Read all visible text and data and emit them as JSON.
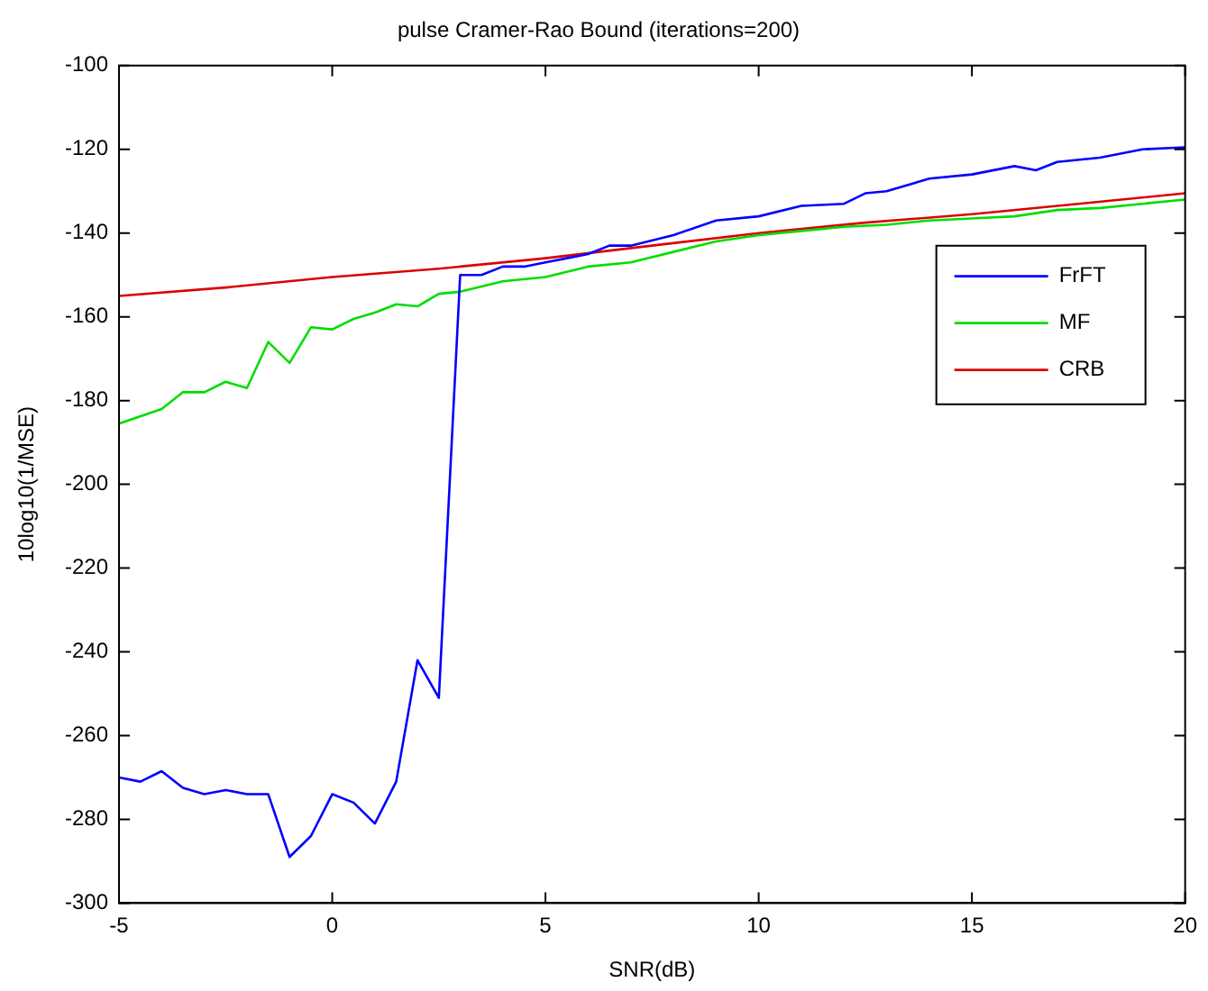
{
  "chart_data": {
    "type": "line",
    "title": "pulse Cramer-Rao Bound (iterations=200)",
    "xlabel": "SNR(dB)",
    "ylabel": "10log10(1/MSE)",
    "xlim": [
      -5,
      20
    ],
    "xticks": [
      -5,
      0,
      5,
      10,
      15,
      20
    ],
    "ylim": [
      -300,
      -100
    ],
    "yticks": [
      -300,
      -280,
      -260,
      -240,
      -220,
      -200,
      -180,
      -160,
      -140,
      -120,
      -100
    ],
    "grid": false,
    "legend": "right",
    "marker": "none",
    "line_style": "solid",
    "series": [
      {
        "name": "FrFT",
        "color": "#0000ff",
        "x": [
          -5,
          -4.5,
          -4,
          -3.5,
          -3,
          -2.5,
          -2,
          -1.5,
          -1,
          -0.5,
          0,
          0.5,
          1,
          1.5,
          2,
          2.5,
          3,
          3.5,
          4,
          4.5,
          5,
          5.5,
          6,
          6.5,
          7,
          8,
          9,
          10,
          11,
          12,
          12.5,
          13,
          14,
          15,
          16,
          16.5,
          17,
          18,
          19,
          20
        ],
        "values": [
          -270,
          -271,
          -268.5,
          -272.5,
          -274,
          -273,
          -274,
          -274,
          -289,
          -284,
          -274,
          -276,
          -281,
          -271,
          -242,
          -251,
          -150,
          -150,
          -148,
          -148,
          -147,
          -146,
          -145,
          -143,
          -143,
          -140.5,
          -137,
          -136,
          -133.5,
          -133,
          -130.5,
          -130,
          -127,
          -126,
          -124,
          -125,
          -123,
          -122,
          -120,
          -119.5
        ]
      },
      {
        "name": "MF",
        "color": "#00dd00",
        "x": [
          -5,
          -4,
          -3.5,
          -3,
          -2.5,
          -2,
          -1.5,
          -1,
          -0.5,
          0,
          0.5,
          1,
          1.5,
          2,
          2.5,
          3,
          4,
          5,
          6,
          7,
          8,
          9,
          10,
          11,
          12,
          13,
          14,
          15,
          16,
          17,
          18,
          19,
          20
        ],
        "values": [
          -185.5,
          -182,
          -178,
          -178,
          -175.5,
          -177,
          -166,
          -171,
          -162.5,
          -163,
          -160.5,
          -159,
          -157,
          -157.5,
          -154.5,
          -154,
          -151.5,
          -150.5,
          -148,
          -147,
          -144.5,
          -142,
          -140.5,
          -139.5,
          -138.5,
          -138,
          -137,
          -136.5,
          -136,
          -134.5,
          -134,
          -133,
          -132
        ]
      },
      {
        "name": "CRB",
        "color": "#dd0000",
        "x": [
          -5,
          -2.5,
          0,
          2.5,
          5,
          7.5,
          10,
          12.5,
          15,
          17.5,
          20
        ],
        "values": [
          -155,
          -153,
          -150.5,
          -148.5,
          -146,
          -143,
          -140,
          -137.5,
          -135.5,
          -133,
          -130.5
        ]
      }
    ]
  }
}
